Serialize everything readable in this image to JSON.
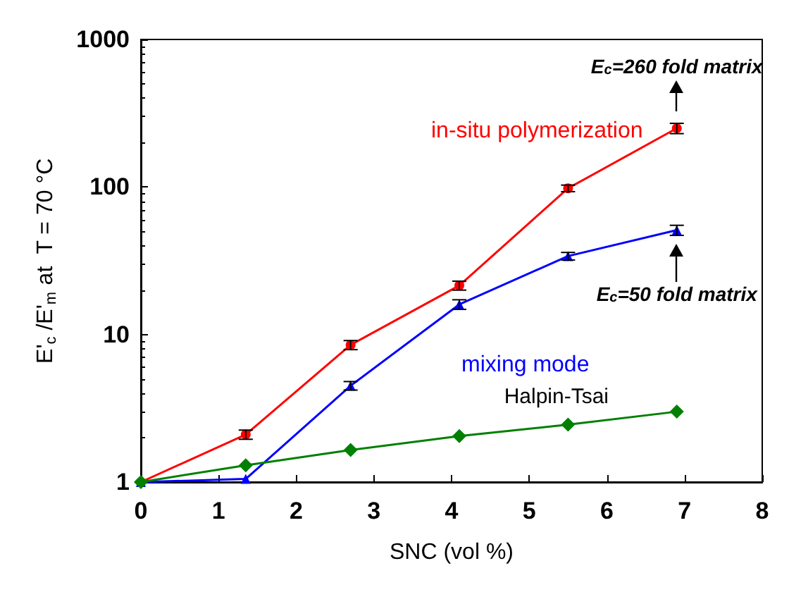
{
  "chart_data": {
    "type": "line",
    "xlabel": "SNC (vol %)",
    "ylabel": "E'$_{c}$ /E'$_{m}$ at  T = 70 °C",
    "log": "y",
    "grid": false,
    "legend": false,
    "line_style": "solid",
    "xlim": [
      0,
      8
    ],
    "xticks": [
      0,
      1,
      2,
      3,
      4,
      5,
      6,
      7,
      8
    ],
    "ylim": [
      1,
      1000
    ],
    "yticks": [
      1,
      10,
      100,
      1000
    ],
    "x": [
      0,
      1.35,
      2.7,
      4.1,
      5.5,
      6.9
    ],
    "series": [
      {
        "name": "in-situ polymerization",
        "color": "#ff0000",
        "marker": "circle",
        "values": [
          1,
          2.1,
          8.5,
          21.5,
          98,
          250
        ],
        "errors": [
          null,
          0.15,
          0.6,
          1.5,
          5,
          20
        ]
      },
      {
        "name": "mixing mode",
        "color": "#0000ff",
        "marker": "triangle",
        "values": [
          1,
          1.05,
          4.5,
          16,
          34,
          51
        ],
        "errors": [
          null,
          null,
          0.3,
          1.2,
          2,
          4
        ]
      },
      {
        "name": "Halpin-Tsai",
        "color": "#008000",
        "marker": "diamond",
        "values": [
          1,
          1.3,
          1.65,
          2.05,
          2.45,
          3.0
        ]
      }
    ],
    "annotations": [
      {
        "text": "E$_{c}$=260 fold matrix",
        "x": 6.9,
        "y": 250
      },
      {
        "text": "E$_{c}$=50 fold matrix",
        "x": 6.9,
        "y": 51
      }
    ]
  }
}
